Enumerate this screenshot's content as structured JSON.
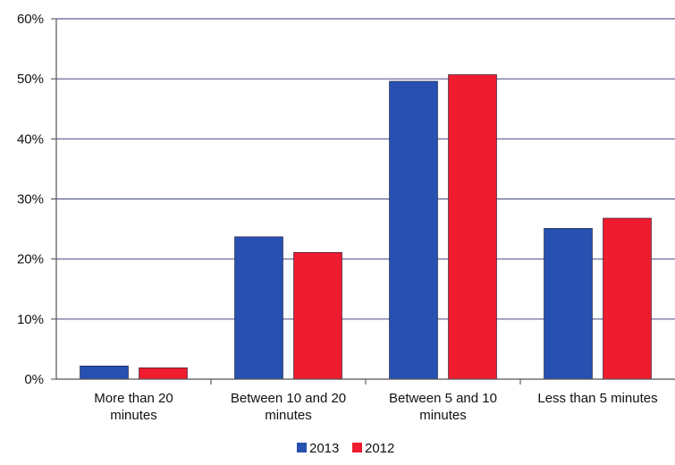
{
  "chart_data": {
    "type": "bar",
    "categories": [
      [
        "More than 20",
        "minutes"
      ],
      [
        "Between 10 and 20",
        "minutes"
      ],
      [
        "Between 5 and 10",
        "minutes"
      ],
      [
        "Less than 5 minutes"
      ]
    ],
    "series": [
      {
        "name": "2013",
        "values": [
          2.2,
          23.7,
          49.6,
          25.1
        ]
      },
      {
        "name": "2012",
        "values": [
          1.9,
          21.1,
          50.7,
          26.8
        ]
      }
    ],
    "y_ticks": [
      "0%",
      "10%",
      "20%",
      "30%",
      "40%",
      "50%",
      "60%"
    ],
    "ylim": [
      0,
      60
    ],
    "y_unit": "%",
    "grid": true,
    "legend_position": "bottom",
    "colors": {
      "2013": "#2750b0",
      "2012": "#ee1c2e"
    }
  }
}
